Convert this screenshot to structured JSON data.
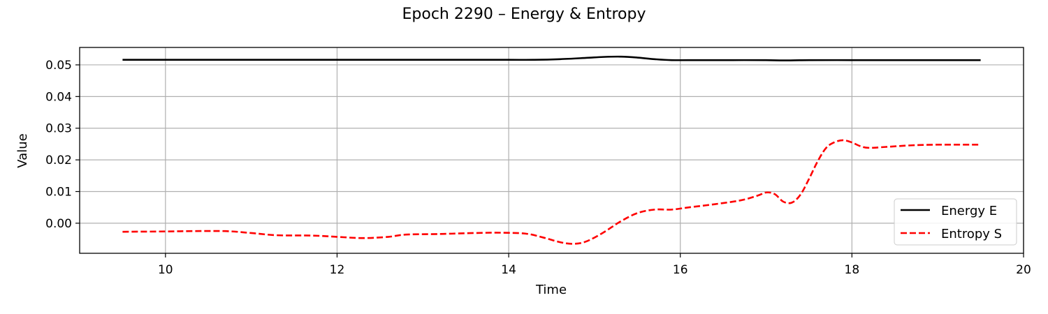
{
  "chart_data": {
    "type": "line",
    "title": "Epoch 2290 – Energy & Entropy",
    "xlabel": "Time",
    "ylabel": "Value",
    "xlim": [
      9.0,
      20.0
    ],
    "ylim": [
      -0.0095,
      0.0555
    ],
    "xticks": [
      10,
      12,
      14,
      16,
      18,
      20
    ],
    "xtick_labels": [
      "10",
      "12",
      "14",
      "16",
      "18",
      "20"
    ],
    "yticks": [
      0.0,
      0.01,
      0.02,
      0.03,
      0.04,
      0.05
    ],
    "ytick_labels": [
      "0.00",
      "0.01",
      "0.02",
      "0.03",
      "0.04",
      "0.05"
    ],
    "grid": true,
    "legend": {
      "position": "lower-right"
    },
    "series": [
      {
        "name": "Energy E",
        "color": "#000000",
        "style": "solid",
        "x": [
          9.5,
          10.5,
          11.5,
          12.5,
          13.5,
          14.0,
          14.3,
          14.6,
          14.9,
          15.1,
          15.3,
          15.5,
          15.7,
          15.9,
          16.2,
          16.6,
          17.0,
          17.2,
          17.5,
          18.0,
          18.5,
          19.0,
          19.5
        ],
        "y": [
          0.0516,
          0.0516,
          0.0516,
          0.0516,
          0.0516,
          0.0516,
          0.0516,
          0.0518,
          0.0522,
          0.0525,
          0.0526,
          0.0523,
          0.0518,
          0.0515,
          0.0515,
          0.0515,
          0.0515,
          0.0514,
          0.0515,
          0.0515,
          0.0515,
          0.0515,
          0.0515
        ]
      },
      {
        "name": "Entropy S",
        "color": "#ff0000",
        "style": "dashed",
        "x": [
          9.5,
          10.0,
          10.3,
          10.7,
          11.0,
          11.3,
          11.7,
          12.0,
          12.3,
          12.6,
          12.8,
          13.2,
          13.6,
          13.9,
          14.2,
          14.4,
          14.6,
          14.75,
          14.9,
          15.1,
          15.3,
          15.5,
          15.7,
          15.9,
          16.1,
          16.4,
          16.7,
          16.9,
          17.0,
          17.1,
          17.2,
          17.3,
          17.4,
          17.5,
          17.6,
          17.7,
          17.8,
          17.9,
          18.0,
          18.1,
          18.2,
          18.4,
          18.7,
          19.0,
          19.5
        ],
        "y": [
          -0.0027,
          -0.0026,
          -0.0025,
          -0.0025,
          -0.0031,
          -0.0038,
          -0.0039,
          -0.0043,
          -0.0047,
          -0.0043,
          -0.0036,
          -0.0034,
          -0.0031,
          -0.003,
          -0.0033,
          -0.0045,
          -0.006,
          -0.0065,
          -0.0058,
          -0.003,
          0.0005,
          0.0032,
          0.0043,
          0.0043,
          0.005,
          0.006,
          0.0072,
          0.0087,
          0.0097,
          0.0092,
          0.0068,
          0.0065,
          0.009,
          0.014,
          0.0195,
          0.0238,
          0.0256,
          0.0262,
          0.0255,
          0.0243,
          0.0238,
          0.0241,
          0.0246,
          0.0248,
          0.0248
        ]
      }
    ]
  }
}
